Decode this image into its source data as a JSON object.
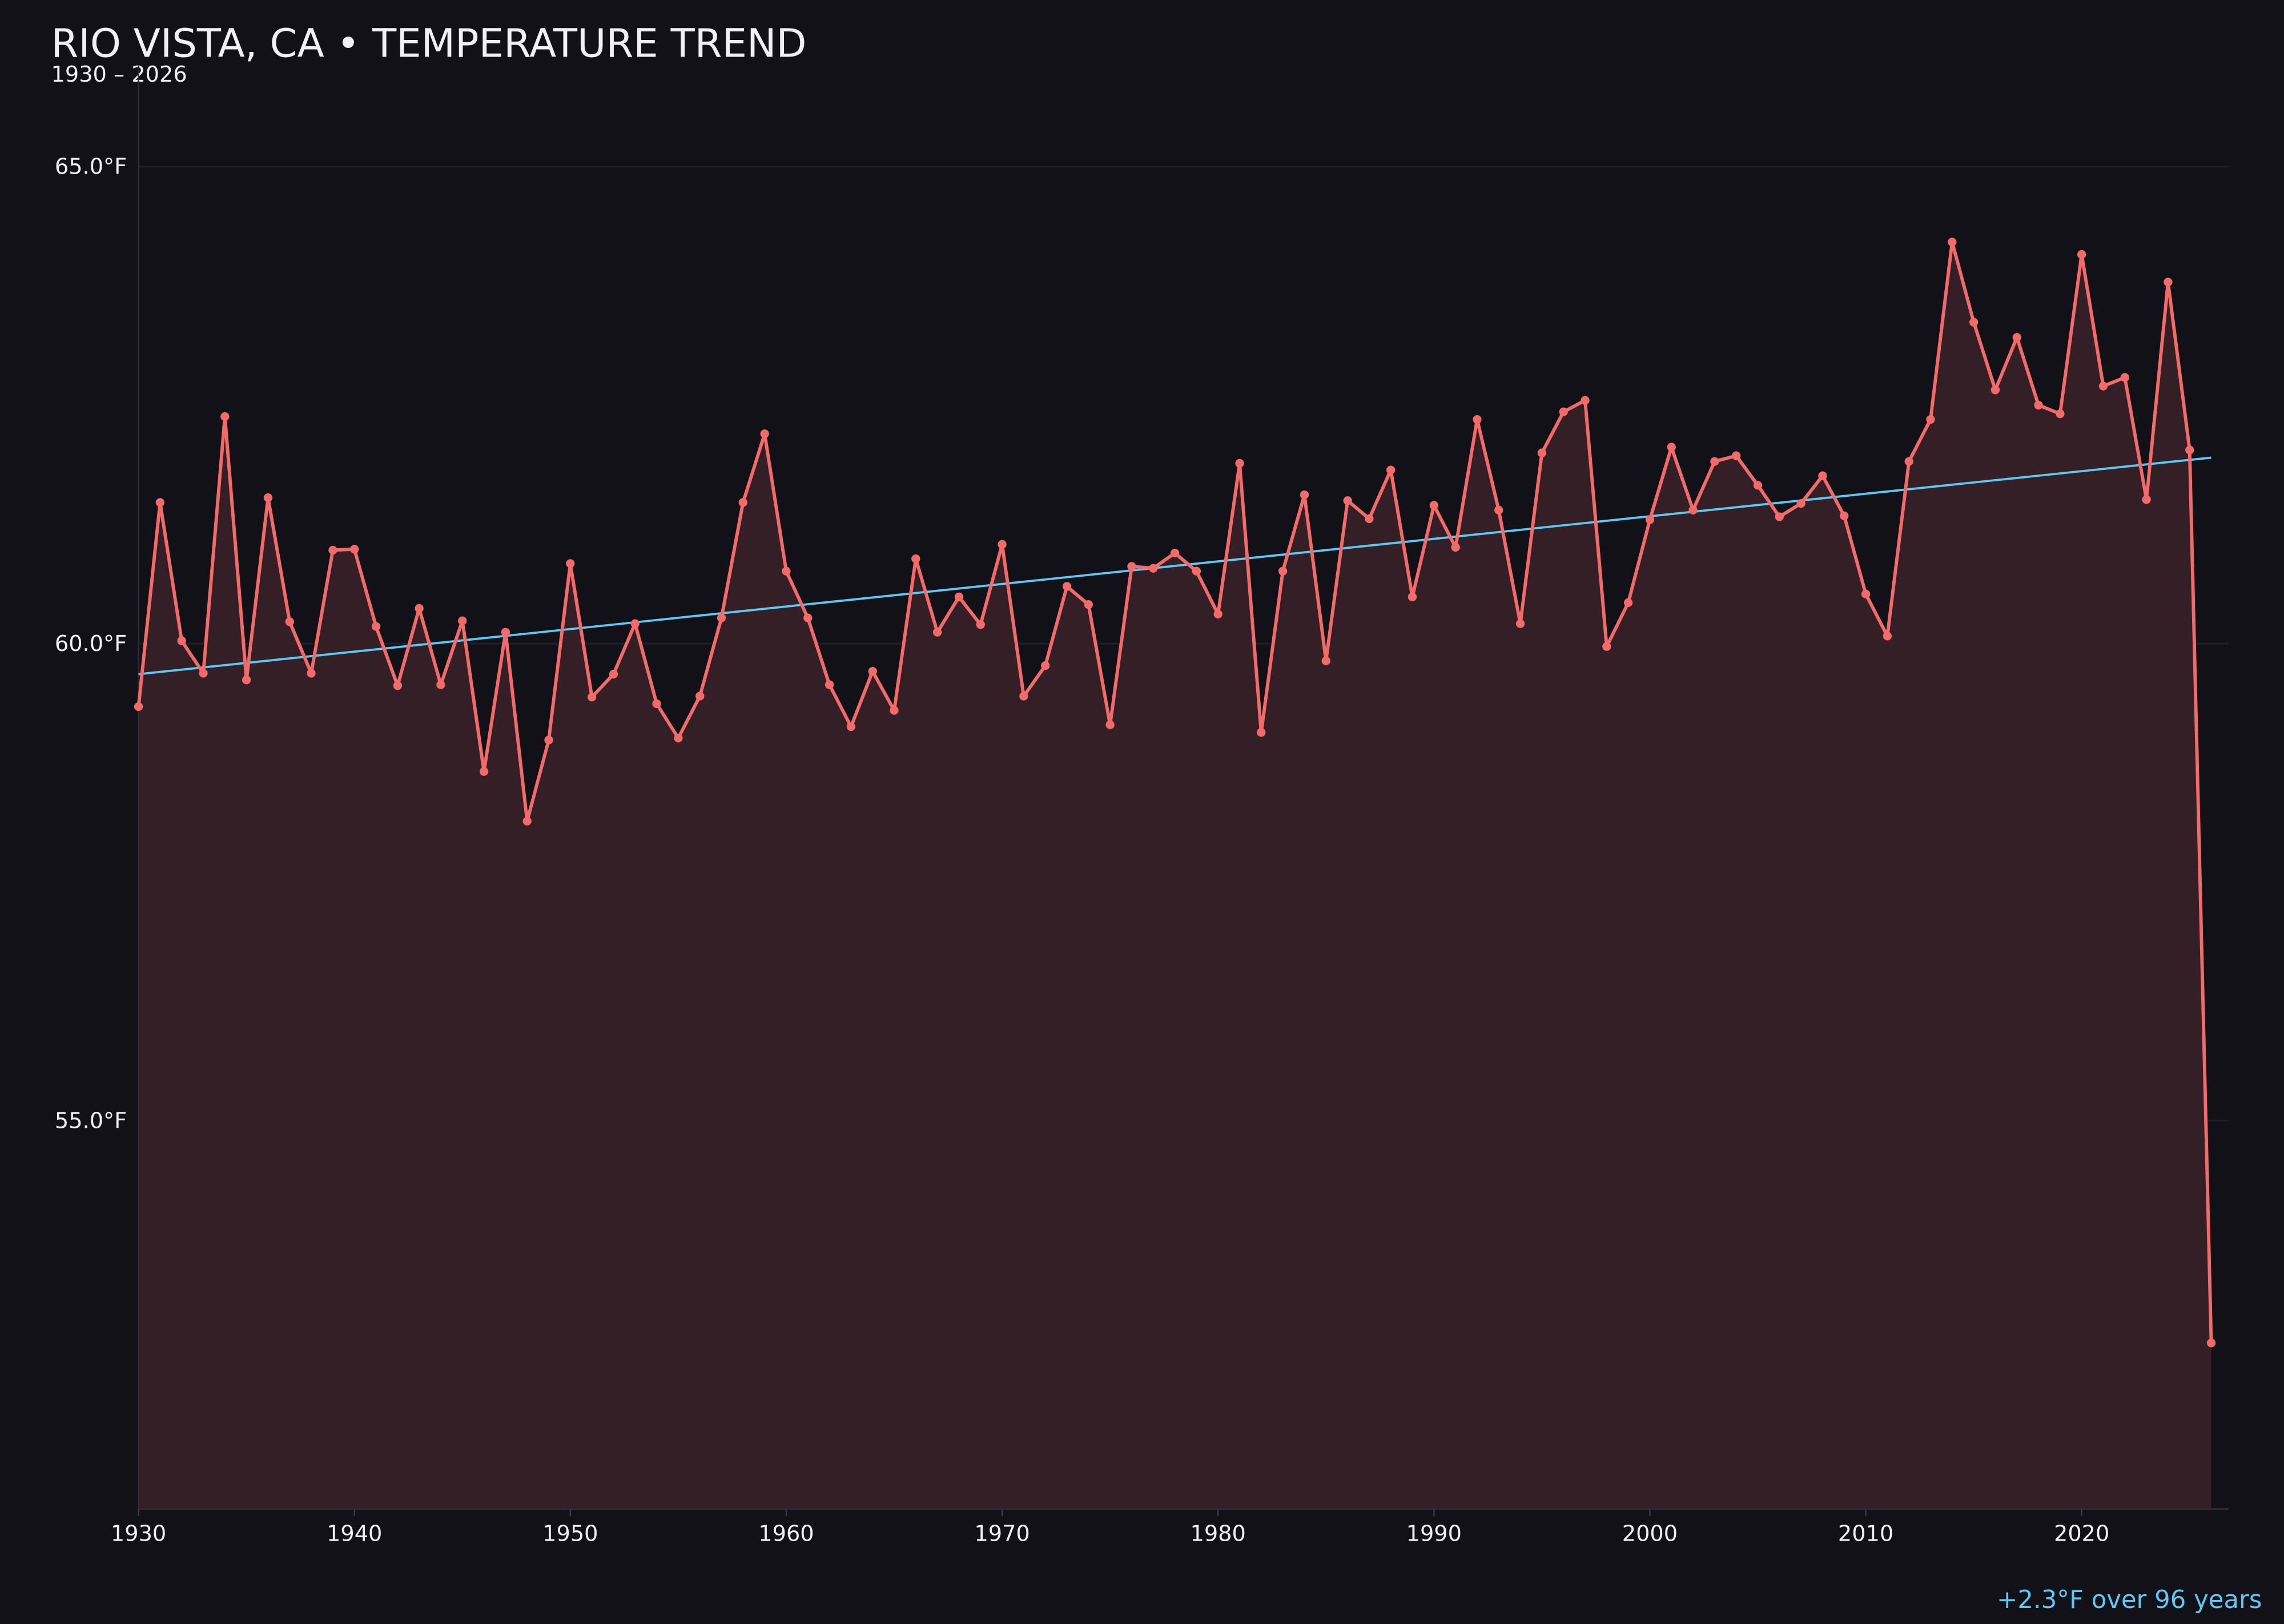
{
  "chart_data": {
    "type": "line",
    "title": "RIO VISTA, CA • TEMPERATURE TREND",
    "subtitle": "1930 – 2026",
    "xlabel": "",
    "ylabel": "",
    "xlim": [
      1930,
      2026.8
    ],
    "ylim": [
      50.93,
      66.06
    ],
    "grid": true,
    "x_ticks": [
      1930,
      1940,
      1950,
      1960,
      1970,
      1980,
      1990,
      2000,
      2010,
      2020
    ],
    "x_tick_labels": [
      "1930",
      "1940",
      "1950",
      "1960",
      "1970",
      "1980",
      "1990",
      "2000",
      "2010",
      "2020"
    ],
    "y_ticks": [
      55,
      60,
      65
    ],
    "y_tick_labels": [
      "55.0°F",
      "60.0°F",
      "65.0°F"
    ],
    "colors": {
      "background": "#121118",
      "line": "#f26b6b",
      "fill": "#351f26",
      "trend": "#5ec8f5",
      "text": "#f2f0f7",
      "grid": "#1f1e25"
    },
    "x": [
      1930,
      1931,
      1932,
      1933,
      1934,
      1935,
      1936,
      1937,
      1938,
      1939,
      1940,
      1941,
      1942,
      1943,
      1944,
      1945,
      1946,
      1947,
      1948,
      1949,
      1950,
      1951,
      1952,
      1953,
      1954,
      1955,
      1956,
      1957,
      1958,
      1959,
      1960,
      1961,
      1962,
      1963,
      1964,
      1965,
      1966,
      1967,
      1968,
      1969,
      1970,
      1971,
      1972,
      1973,
      1974,
      1975,
      1976,
      1977,
      1978,
      1979,
      1980,
      1981,
      1982,
      1983,
      1984,
      1985,
      1986,
      1987,
      1988,
      1989,
      1990,
      1991,
      1992,
      1993,
      1994,
      1995,
      1996,
      1997,
      1998,
      1999,
      2000,
      2001,
      2002,
      2003,
      2004,
      2005,
      2006,
      2007,
      2008,
      2009,
      2010,
      2011,
      2012,
      2013,
      2014,
      2015,
      2016,
      2017,
      2018,
      2019,
      2020,
      2021,
      2022,
      2023,
      2024,
      2025,
      2026
    ],
    "series": [
      {
        "values": [
          59.34,
          61.48,
          60.03,
          59.69,
          62.38,
          59.62,
          61.53,
          60.23,
          59.69,
          60.98,
          60.99,
          60.18,
          59.56,
          60.37,
          59.57,
          60.24,
          58.66,
          60.12,
          58.14,
          58.99,
          60.84,
          59.44,
          59.68,
          60.21,
          59.37,
          59.01,
          59.45,
          60.27,
          61.48,
          62.2,
          60.76,
          60.27,
          59.57,
          59.13,
          59.71,
          59.3,
          60.89,
          60.12,
          60.49,
          60.2,
          61.04,
          59.45,
          59.77,
          60.6,
          60.41,
          59.15,
          60.81,
          60.79,
          60.95,
          60.76,
          60.31,
          61.89,
          59.07,
          60.76,
          61.56,
          59.82,
          61.5,
          61.31,
          61.82,
          60.49,
          61.45,
          61.01,
          62.35,
          61.4,
          60.21,
          62.0,
          62.43,
          62.55,
          59.97,
          60.43,
          61.3,
          62.06,
          61.4,
          61.91,
          61.97,
          61.66,
          61.33,
          61.47,
          61.76,
          61.34,
          60.52,
          60.08,
          61.91,
          62.35,
          64.21,
          63.37,
          62.66,
          63.21,
          62.5,
          62.41,
          64.08,
          62.7,
          62.79,
          61.51,
          63.79,
          62.03,
          52.67
        ]
      }
    ],
    "trend": {
      "x": [
        1930,
        2026
      ],
      "y": [
        59.68,
        61.95
      ]
    },
    "annotation": "+2.3°F over 96 years"
  }
}
